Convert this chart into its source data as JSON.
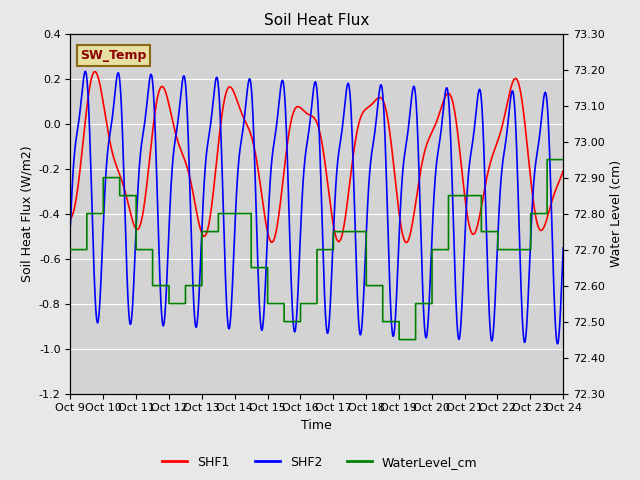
{
  "title": "Soil Heat Flux",
  "ylabel_left": "Soil Heat Flux (W/m2)",
  "ylabel_right": "Water Level (cm)",
  "xlabel": "Time",
  "ylim_left": [
    -1.2,
    0.4
  ],
  "ylim_right": [
    72.3,
    73.3
  ],
  "xtick_labels": [
    "Oct 9",
    "Oct 10",
    "Oct 11",
    "Oct 12",
    "Oct 13",
    "Oct 14",
    "Oct 15",
    "Oct 16",
    "Oct 17",
    "Oct 18",
    "Oct 19",
    "Oct 20",
    "Oct 21",
    "Oct 22",
    "Oct 23",
    "Oct 24"
  ],
  "bg_color": "#e8e8e8",
  "plot_bg_color": "#d3d3d3",
  "annotation_box": "SW_Temp",
  "annotation_color": "#8b0000",
  "annotation_bg": "#e8e0a0",
  "annotation_edge": "#8b6914",
  "grid_color": "#ffffff",
  "line_width": 1.2,
  "title_fontsize": 11,
  "label_fontsize": 9,
  "tick_fontsize": 8
}
